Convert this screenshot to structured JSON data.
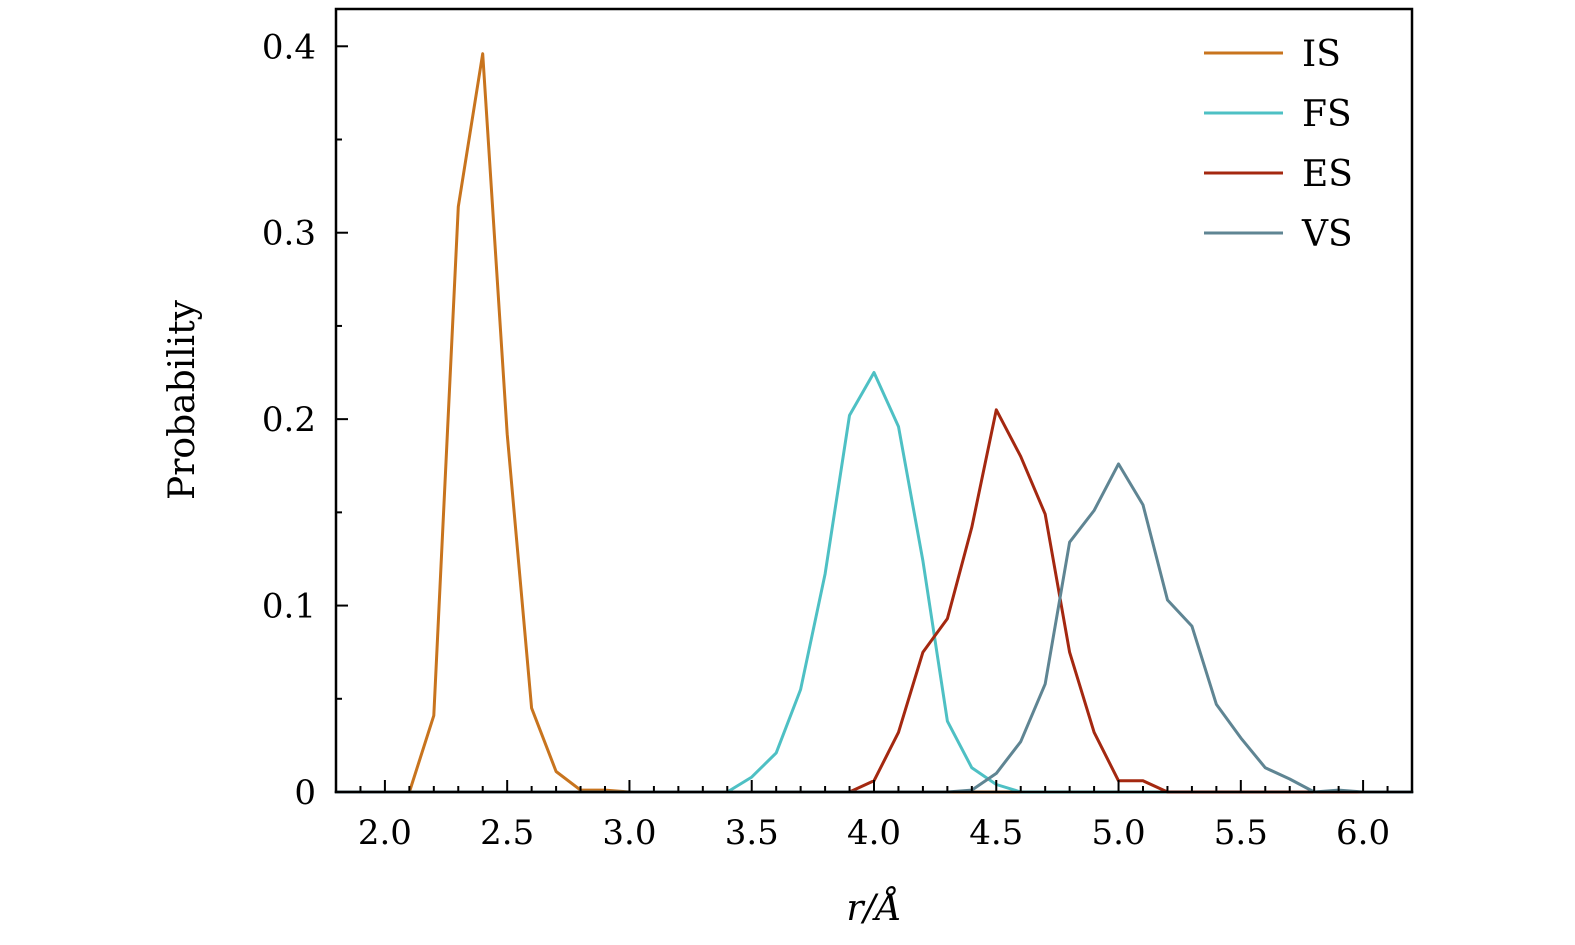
{
  "chart_data": {
    "type": "line",
    "title": "",
    "xlabel": "r/Å",
    "ylabel": "Probability",
    "xlim": [
      1.8,
      6.2
    ],
    "ylim": [
      0,
      0.42
    ],
    "x_major_ticks": [
      2.0,
      2.5,
      3.0,
      3.5,
      4.0,
      4.5,
      5.0,
      5.5,
      6.0
    ],
    "x_tick_labels": [
      "2.0",
      "2.5",
      "3.0",
      "3.5",
      "4.0",
      "4.5",
      "5.0",
      "5.5",
      "6.0"
    ],
    "y_major_ticks": [
      0,
      0.1,
      0.2,
      0.3,
      0.4
    ],
    "y_tick_labels": [
      "0",
      "0.1",
      "0.2",
      "0.3",
      "0.4"
    ],
    "grid": false,
    "legend_position": "top-right",
    "x": [
      1.8,
      1.9,
      2.0,
      2.1,
      2.2,
      2.3,
      2.4,
      2.5,
      2.6,
      2.7,
      2.8,
      2.9,
      3.0,
      3.1,
      3.2,
      3.3,
      3.4,
      3.5,
      3.6,
      3.7,
      3.8,
      3.9,
      4.0,
      4.1,
      4.2,
      4.3,
      4.4,
      4.5,
      4.6,
      4.7,
      4.8,
      4.9,
      5.0,
      5.1,
      5.2,
      5.3,
      5.4,
      5.5,
      5.6,
      5.7,
      5.8,
      5.9,
      6.0,
      6.1,
      6.2
    ],
    "series": [
      {
        "name": "IS",
        "color": "#C8741E",
        "values": [
          0,
          0,
          0,
          0,
          0.041,
          0.314,
          0.396,
          0.192,
          0.045,
          0.011,
          0.001,
          0.001,
          0,
          0,
          0,
          0,
          0,
          0,
          0,
          0,
          0,
          0,
          0,
          0,
          0,
          0,
          0,
          0,
          0,
          0,
          0,
          0,
          0,
          0,
          0,
          0,
          0,
          0,
          0,
          0,
          0,
          0,
          0,
          0,
          0
        ]
      },
      {
        "name": "FS",
        "color": "#4EC0C4",
        "values": [
          0,
          0,
          0,
          0,
          0,
          0,
          0,
          0,
          0,
          0,
          0,
          0,
          0,
          0,
          0,
          0,
          0,
          0.008,
          0.021,
          0.055,
          0.117,
          0.202,
          0.225,
          0.196,
          0.124,
          0.038,
          0.013,
          0.004,
          0,
          0,
          0,
          0,
          0,
          0,
          0,
          0,
          0,
          0,
          0,
          0,
          0,
          0,
          0,
          0,
          0
        ]
      },
      {
        "name": "ES",
        "color": "#A42810",
        "values": [
          0,
          0,
          0,
          0,
          0,
          0,
          0,
          0,
          0,
          0,
          0,
          0,
          0,
          0,
          0,
          0,
          0,
          0,
          0,
          0,
          0,
          0,
          0.006,
          0.032,
          0.075,
          0.093,
          0.142,
          0.205,
          0.18,
          0.149,
          0.075,
          0.032,
          0.006,
          0.006,
          0,
          0,
          0,
          0,
          0,
          0,
          0,
          0,
          0,
          0,
          0
        ]
      },
      {
        "name": "VS",
        "color": "#5F8593",
        "values": [
          0,
          0,
          0,
          0,
          0,
          0,
          0,
          0,
          0,
          0,
          0,
          0,
          0,
          0,
          0,
          0,
          0,
          0,
          0,
          0,
          0,
          0,
          0,
          0,
          0,
          0,
          0.001,
          0.01,
          0.027,
          0.058,
          0.134,
          0.151,
          0.176,
          0.154,
          0.103,
          0.089,
          0.047,
          0.029,
          0.013,
          0.007,
          0,
          0.001,
          0,
          0,
          0
        ]
      }
    ]
  }
}
